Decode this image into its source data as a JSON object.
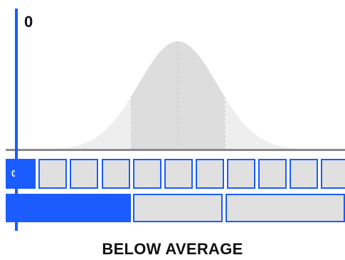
{
  "score": {
    "value": "0",
    "cell_label": "0"
  },
  "scale": {
    "cell_count": 11,
    "active_cell_index": 0,
    "band_count": 3,
    "active_band_index": 0
  },
  "category": "BELOW AVERAGE",
  "colors": {
    "accent": "#1a5cff",
    "cell_fill": "#e0e0e0",
    "curve_outer": "#eeeeee",
    "curve_center": "#dddddd",
    "baseline": "#8a8a8a"
  }
}
